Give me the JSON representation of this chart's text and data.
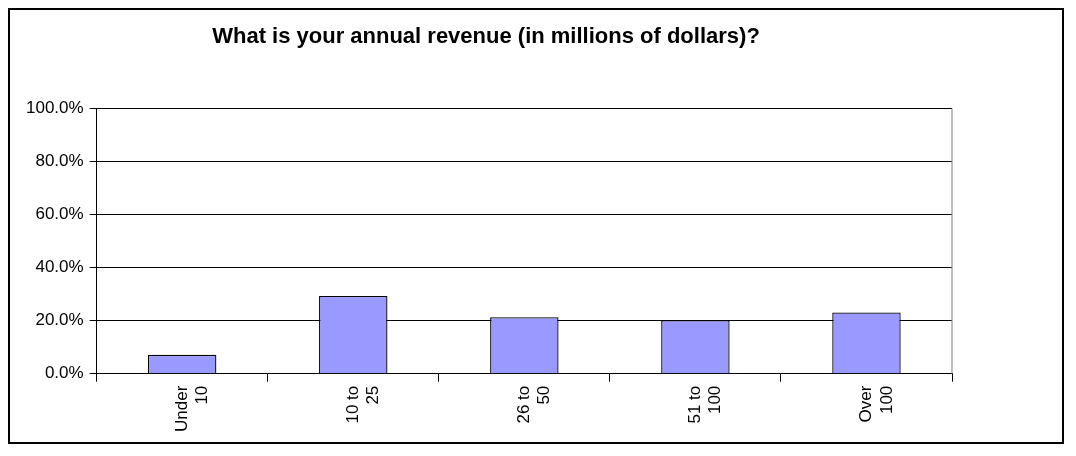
{
  "chart_data": {
    "type": "bar",
    "title": "What is your annual revenue (in millions of dollars)?",
    "categories": [
      "Under 10",
      "10 to 25",
      "26 to 50",
      "51 to 100",
      "Over 100"
    ],
    "values": [
      7.1,
      29.3,
      21.3,
      20.2,
      23.1
    ],
    "color": "#9999ff",
    "ylim": [
      0,
      100
    ],
    "yticks": [
      {
        "value": 0,
        "label": "0.0%"
      },
      {
        "value": 20,
        "label": "20.0%"
      },
      {
        "value": 40,
        "label": "40.0%"
      },
      {
        "value": 60,
        "label": "60.0%"
      },
      {
        "value": 80,
        "label": "80.0%"
      },
      {
        "value": 100,
        "label": "100.0%"
      }
    ],
    "grid": "y",
    "legend": false
  }
}
